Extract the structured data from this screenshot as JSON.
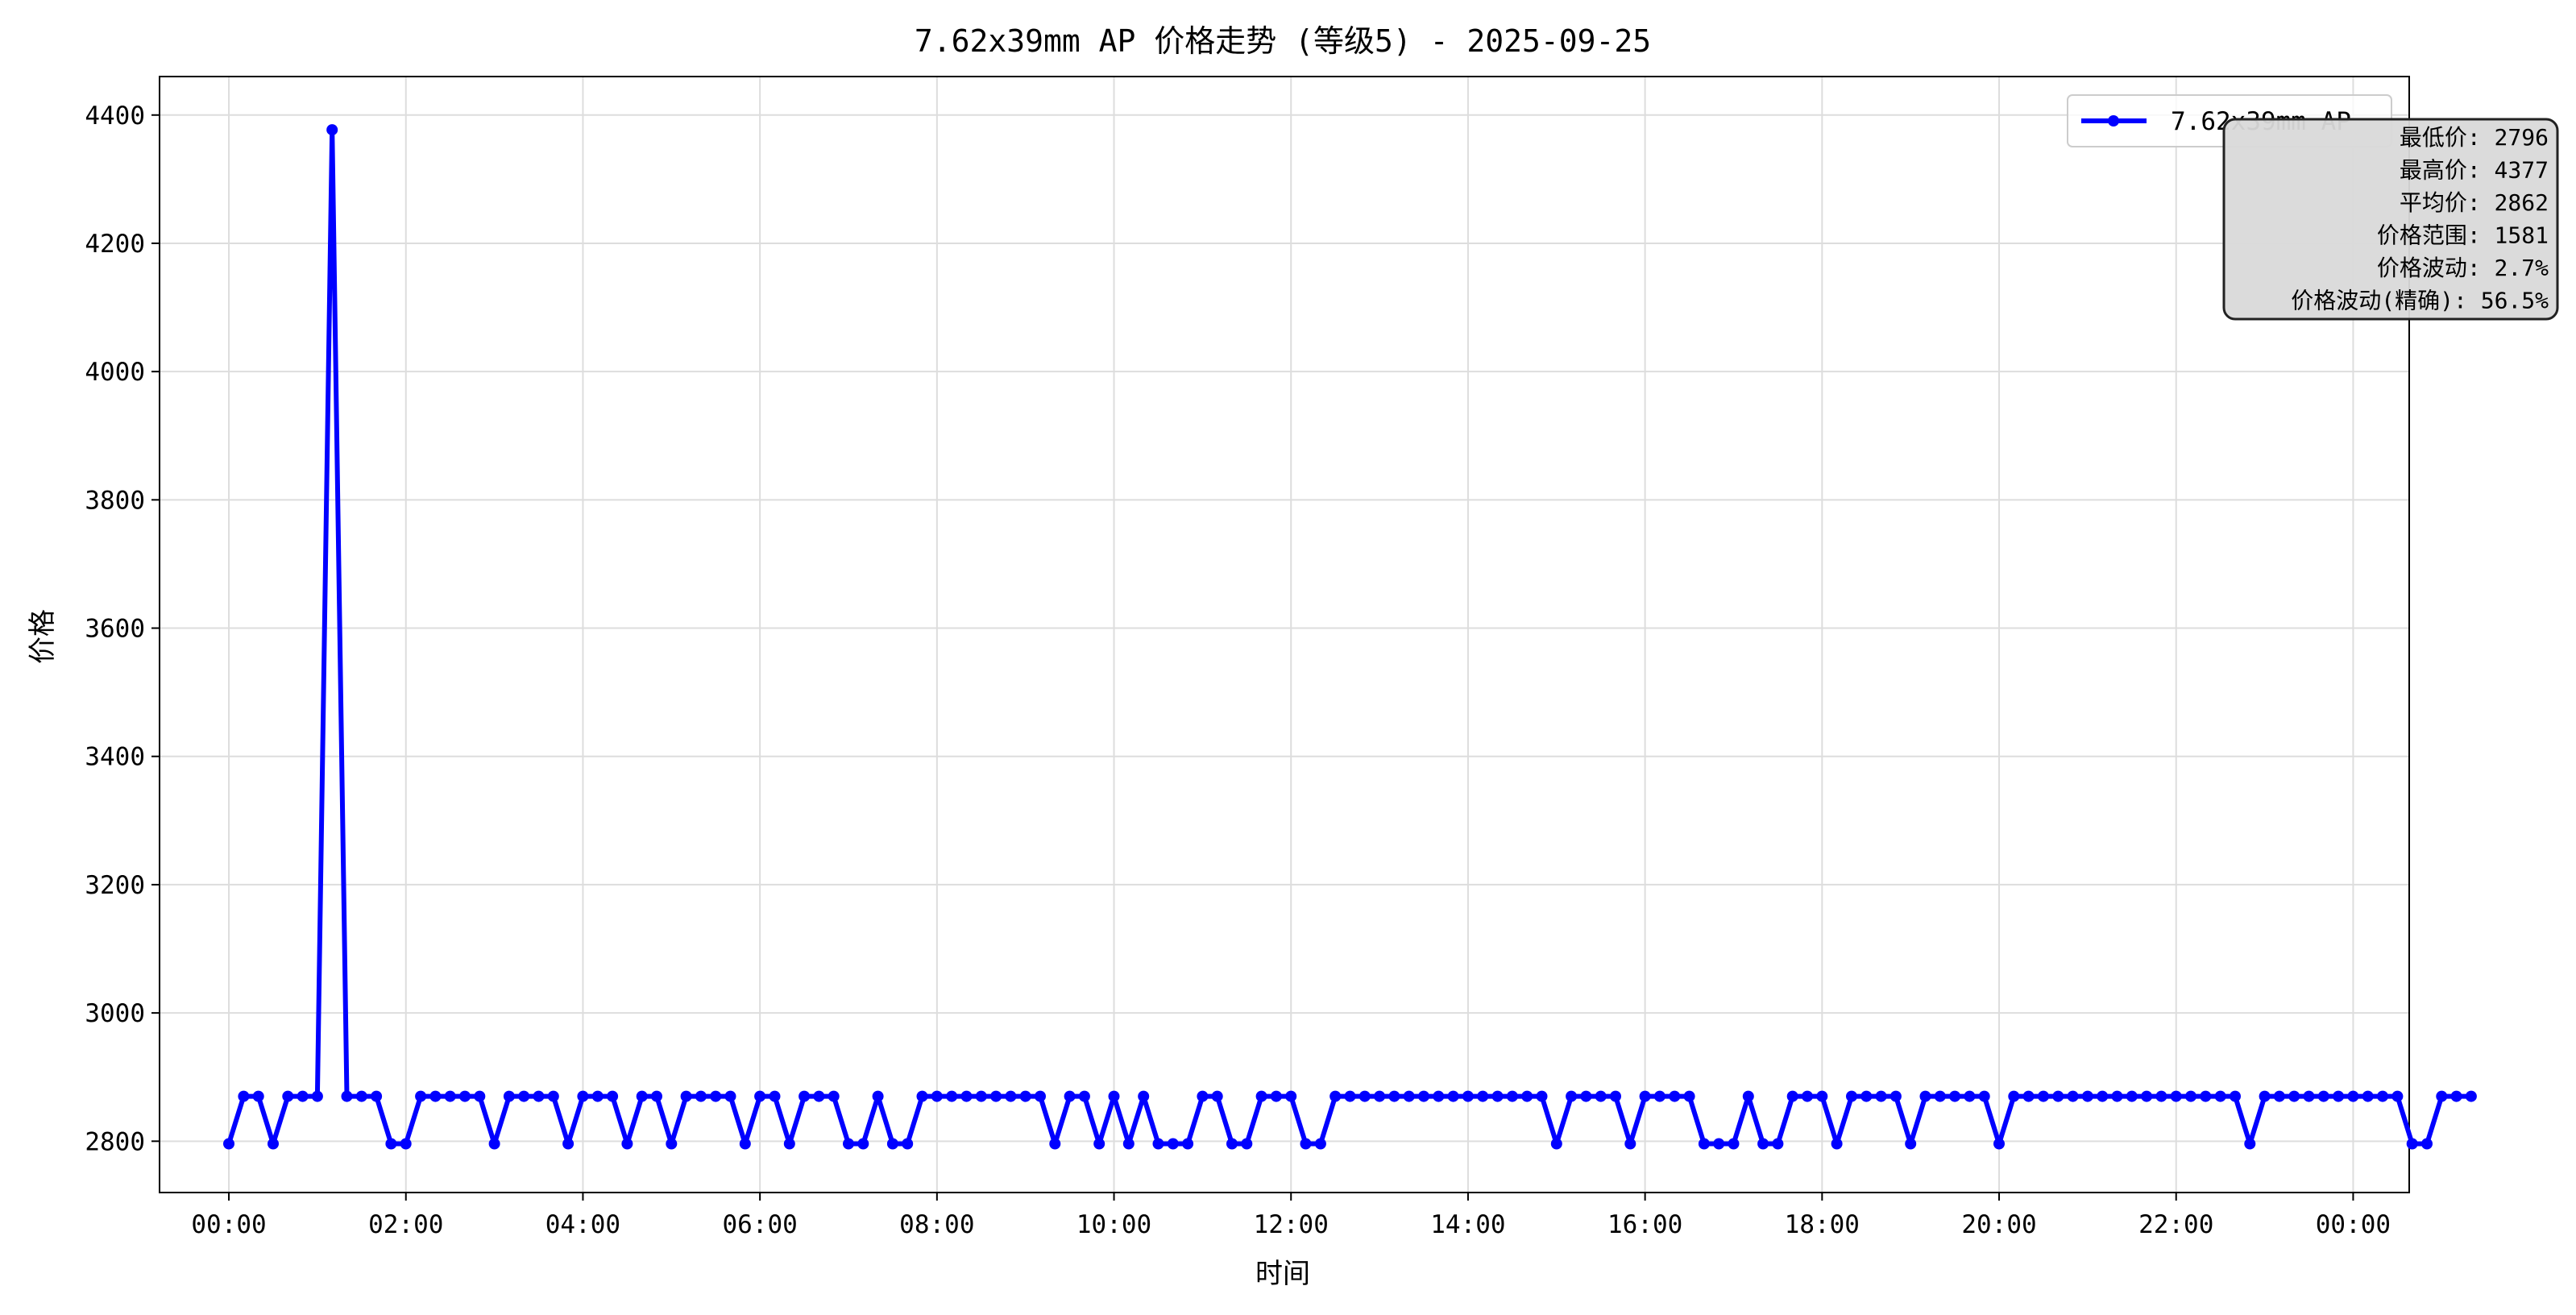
{
  "chart_data": {
    "type": "line",
    "title": "7.62x39mm AP 价格走势 (等级5) - 2025-09-25",
    "xlabel": "时间",
    "ylabel": "价格",
    "ylim": [
      2720,
      4460
    ],
    "xlim": [
      "2025-09-24T23:13",
      "2025-09-26T00:38"
    ],
    "xticks": [
      "00:00",
      "02:00",
      "04:00",
      "06:00",
      "08:00",
      "10:00",
      "12:00",
      "14:00",
      "16:00",
      "18:00",
      "20:00",
      "22:00",
      "00:00"
    ],
    "yticks": [
      2800,
      3000,
      3200,
      3400,
      3600,
      3800,
      4000,
      4200,
      4400
    ],
    "grid": true,
    "legend_position": "top-right",
    "colors": {
      "line": "#0000ff",
      "stats_box_fill": "#d9d9d9",
      "grid": "#dddddd"
    },
    "x_start": "2025-09-25T00:00",
    "x_step_minutes": 10,
    "series": [
      {
        "name": "7.62x39mm AP",
        "values": [
          2796,
          2870,
          2870,
          2796,
          2870,
          2870,
          2870,
          4377,
          2870,
          2870,
          2870,
          2796,
          2796,
          2870,
          2870,
          2870,
          2870,
          2870,
          2796,
          2870,
          2870,
          2870,
          2870,
          2796,
          2870,
          2870,
          2870,
          2796,
          2870,
          2870,
          2796,
          2870,
          2870,
          2870,
          2870,
          2796,
          2870,
          2870,
          2796,
          2870,
          2870,
          2870,
          2796,
          2796,
          2870,
          2796,
          2796,
          2870,
          2870,
          2870,
          2870,
          2870,
          2870,
          2870,
          2870,
          2870,
          2796,
          2870,
          2870,
          2796,
          2870,
          2796,
          2870,
          2796,
          2796,
          2796,
          2870,
          2870,
          2796,
          2796,
          2870,
          2870,
          2870,
          2796,
          2796,
          2870,
          2870,
          2870,
          2870,
          2870,
          2870,
          2870,
          2870,
          2870,
          2870,
          2870,
          2870,
          2870,
          2870,
          2870,
          2796,
          2870,
          2870,
          2870,
          2870,
          2796,
          2870,
          2870,
          2870,
          2870,
          2796,
          2796,
          2796,
          2870,
          2796,
          2796,
          2870,
          2870,
          2870,
          2796,
          2870,
          2870,
          2870,
          2870,
          2796,
          2870,
          2870,
          2870,
          2870,
          2870,
          2796,
          2870,
          2870,
          2870,
          2870,
          2870,
          2870,
          2870,
          2870,
          2870,
          2870,
          2870,
          2870,
          2870,
          2870,
          2870,
          2870,
          2796,
          2870,
          2870,
          2870,
          2870,
          2870,
          2870,
          2870,
          2870,
          2870,
          2870,
          2796,
          2796,
          2870,
          2870,
          2870
        ]
      }
    ],
    "stats_lines": [
      "最低价: 2796",
      "最高价: 4377",
      "平均价: 2862",
      "价格范围: 1581",
      "价格波动: 2.7%",
      "价格波动(精确): 56.5%"
    ]
  }
}
